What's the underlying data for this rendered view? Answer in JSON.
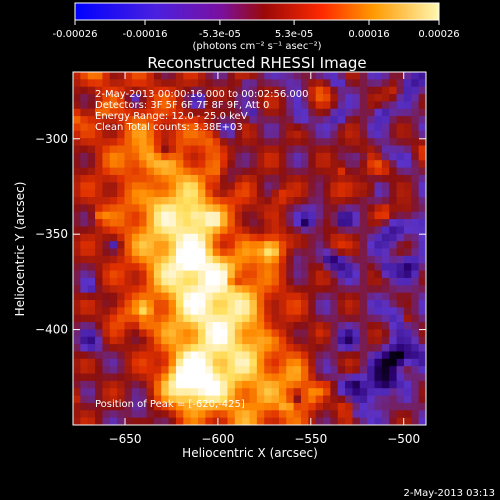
{
  "chart_data": {
    "type": "heatmap",
    "title": "Reconstructed RHESSI Image",
    "xlabel": "Heliocentric X (arcsec)",
    "ylabel": "Heliocentric Y (arcsec)",
    "xlim": [
      -678,
      -488
    ],
    "ylim": [
      -450,
      -265
    ],
    "x_ticks": [
      -650,
      -600,
      -550,
      -500
    ],
    "y_ticks": [
      -300,
      -350,
      -400
    ],
    "colorbar": {
      "range": [
        -0.00026,
        0.00026
      ],
      "tick_values": [
        -0.00026,
        -0.00016,
        -5.3e-05,
        5.3e-05,
        0.00016,
        0.00026
      ],
      "tick_labels": [
        "-0.00026",
        "-0.00016",
        "-5.3e-05",
        "5.3e-05",
        "0.00016",
        "0.00026"
      ],
      "unit_label": "(photons cm⁻² s⁻¹ asec⁻²)"
    },
    "annotations": [
      "2-May-2013 00:00:16.000 to 00:02:56.000",
      "Detectors: 3F 5F 6F 7F 8F 9F, Att 0",
      "Energy Range: 12.0 - 25.0 keV",
      "Clean     Total counts: 3.38E+03"
    ],
    "peak_label": "Position of Peak = [-620,-425]",
    "peak": [
      -620,
      -425
    ],
    "timestamp": "2-May-2013 03:13",
    "colormap": [
      "#000000",
      "#2a0070",
      "#5a32c8",
      "#8a1010",
      "#e03000",
      "#ff8a00",
      "#ffe060",
      "#ffffff"
    ],
    "grid": false,
    "legend": "none"
  }
}
